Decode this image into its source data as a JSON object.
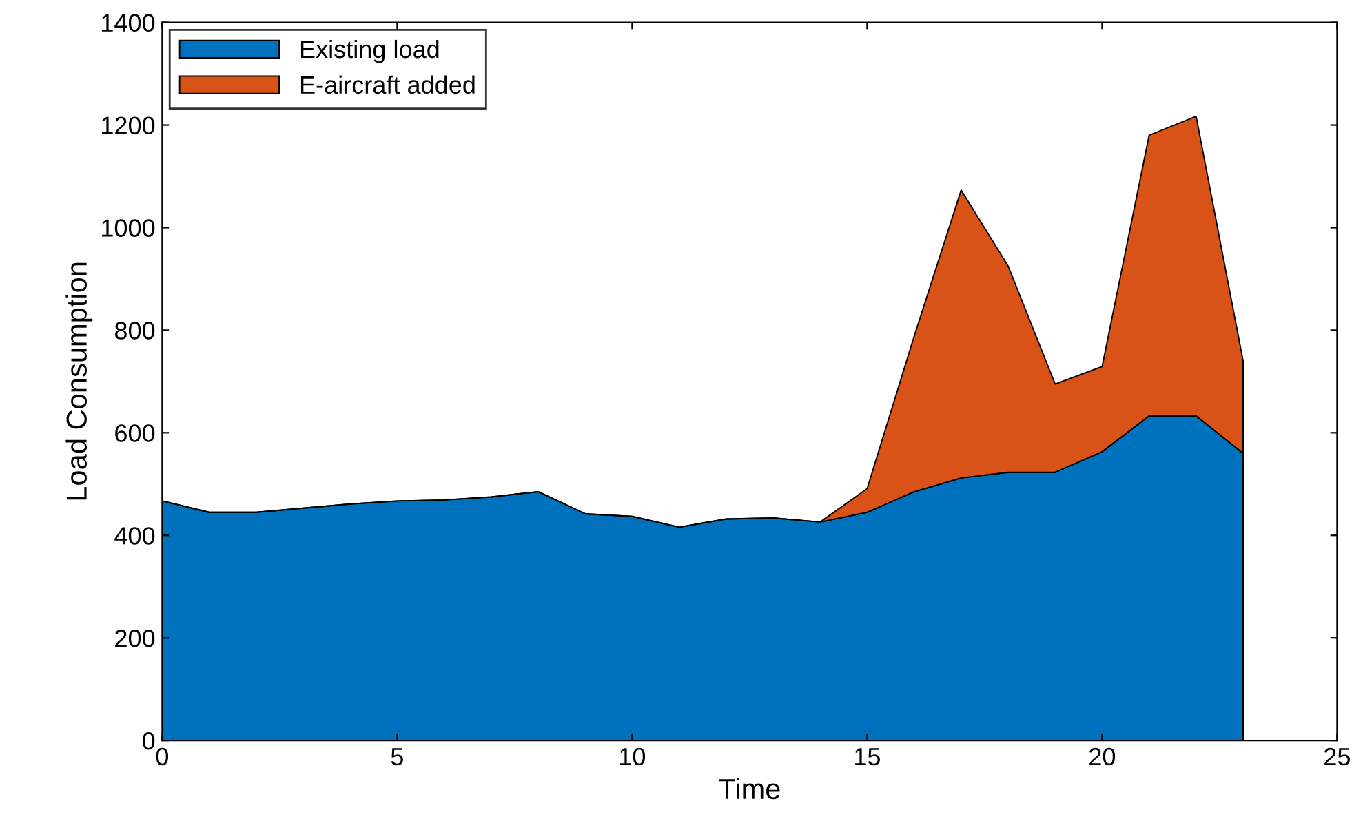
{
  "chart_data": {
    "type": "area",
    "stacked": true,
    "xlabel": "Time",
    "ylabel": "Load Consumption",
    "x": [
      0,
      1,
      2,
      3,
      4,
      5,
      6,
      7,
      8,
      9,
      10,
      11,
      12,
      13,
      14,
      15,
      16,
      17,
      18,
      19,
      20,
      21,
      22,
      23
    ],
    "series": [
      {
        "name": "Existing load",
        "color": "#0072bd",
        "values": [
          467,
          445,
          445,
          453,
          461,
          467,
          469,
          475,
          485,
          442,
          437,
          416,
          432,
          434,
          426,
          445,
          485,
          512,
          523,
          523,
          563,
          633,
          633,
          560
        ]
      },
      {
        "name": "E-aircraft added",
        "color": "#d95319",
        "values": [
          0,
          0,
          0,
          0,
          0,
          0,
          0,
          0,
          0,
          0,
          0,
          0,
          0,
          0,
          0,
          46,
          303,
          561,
          402,
          172,
          166,
          547,
          584,
          180
        ]
      }
    ],
    "xlim": [
      0,
      25
    ],
    "xticks": [
      0,
      5,
      10,
      15,
      20,
      25
    ],
    "ylim": [
      0,
      1400
    ],
    "yticks": [
      0,
      200,
      400,
      600,
      800,
      1000,
      1200,
      1400
    ],
    "grid": false,
    "legend": "top left"
  }
}
